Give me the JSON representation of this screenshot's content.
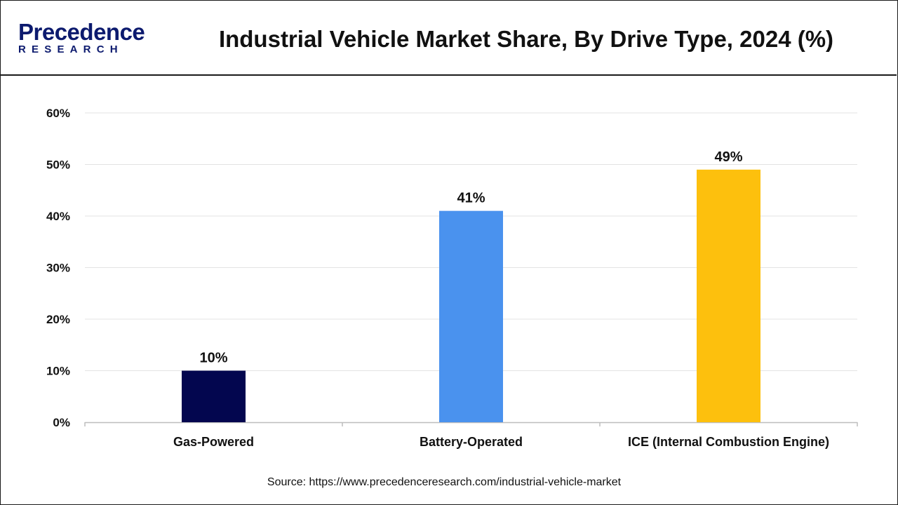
{
  "header": {
    "logo_main": "Precedence",
    "logo_sub": "RESEARCH",
    "title": "Industrial Vehicle Market Share, By Drive Type, 2024 (%)"
  },
  "footer": {
    "source": "Source: https://www.precedenceresearch.com/industrial-vehicle-market"
  },
  "colors": {
    "gas": "#03064f",
    "battery": "#4a92ee",
    "ice": "#fdc00d",
    "brand": "#0c1a6e"
  },
  "chart_data": {
    "type": "bar",
    "title": "Industrial Vehicle Market Share, By Drive Type, 2024 (%)",
    "categories": [
      "Gas-Powered",
      "Battery-Operated",
      "ICE (Internal Combustion Engine)"
    ],
    "values": [
      10,
      41,
      49
    ],
    "data_labels": [
      "10%",
      "41%",
      "49%"
    ],
    "ylim": [
      0,
      60
    ],
    "yticks": [
      0,
      10,
      20,
      30,
      40,
      50,
      60
    ],
    "ytick_labels": [
      "0%",
      "10%",
      "20%",
      "30%",
      "40%",
      "50%",
      "60%"
    ],
    "xlabel": "",
    "ylabel": "",
    "grid": true
  }
}
